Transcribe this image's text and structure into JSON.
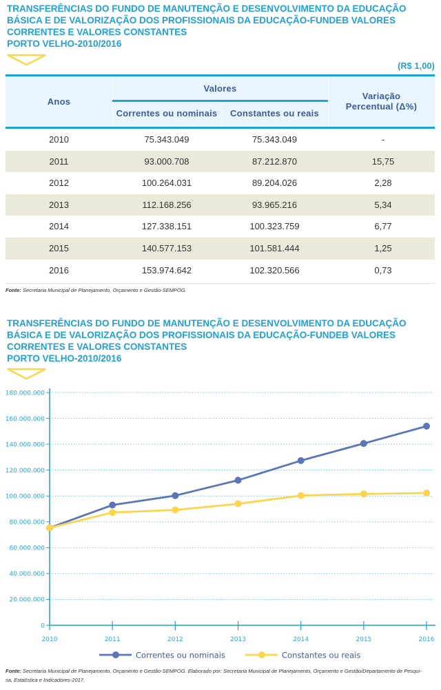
{
  "colors": {
    "title": "#1da1db",
    "header_text": "#3d5a99",
    "header_bg": "#e9f5fc",
    "row_alt_bg": "#ebe9d9",
    "marker_yellow": "#fcd54c"
  },
  "table_section": {
    "title_lines": [
      "TRANSFERÊNCIAS DO FUNDO DE MANUTENÇÃO E DESENVOLVIMENTO DA EDUCAÇÃO",
      "BÁSICA E DE VALORIZAÇÃO DOS PROFISSIONAIS DA EDUCAÇÃO-FUNDEB VALORES",
      "CORRENTES E VALORES CONSTANTES",
      "PORTO VELHO-2010/2016"
    ],
    "unit": "(R$ 1,00)",
    "headers": {
      "anos": "Anos",
      "valores": "Valores",
      "correntes": "Correntes ou nominais",
      "constantes": "Constantes ou reais",
      "variacao_line1": "Variação",
      "variacao_line2": "Percentual (Δ%)"
    },
    "rows": [
      {
        "year": "2010",
        "correntes": "75.343.049",
        "constantes": "75.343.049",
        "variacao": "-"
      },
      {
        "year": "2011",
        "correntes": "93.000.708",
        "constantes": "87.212.870",
        "variacao": "15,75"
      },
      {
        "year": "2012",
        "correntes": "100.264.031",
        "constantes": "89.204.026",
        "variacao": "2,28"
      },
      {
        "year": "2013",
        "correntes": "112.168.256",
        "constantes": "93.965.216",
        "variacao": "5,34"
      },
      {
        "year": "2014",
        "correntes": "127.338.151",
        "constantes": "100.323.759",
        "variacao": "6,77"
      },
      {
        "year": "2015",
        "correntes": "140.577.153",
        "constantes": "101.581.444",
        "variacao": "1,25"
      },
      {
        "year": "2016",
        "correntes": "153.974.642",
        "constantes": "102.320.566",
        "variacao": "0,73"
      }
    ],
    "source": {
      "label": "Fonte:",
      "text": " Secretaria Municipal de Planejamento, Orçamento e Gestão-SEMPOG."
    }
  },
  "chart_section": {
    "title_lines": [
      "TRANSFERÊNCIAS DO FUNDO DE MANUTENÇÃO E DESENVOLVIMENTO DA EDUCAÇÃO",
      "BÁSICA E DE VALORIZAÇÃO DOS PROFISSIONAIS DA EDUCAÇÃO-FUNDEB VALORES",
      "CORRENTES E VALORES CONSTANTES",
      "PORTO VELHO-2010/2016"
    ],
    "source": {
      "label": "Fonte:",
      "line1": " Secretaria Municipal de Planejamento, Orçamento e Gestão-SEMPOG. Elaborado por: Secretaria Municipal de Planejamento, Orçamento e Gestão/Departamento de Pesqui-",
      "line2": "sa, Estatística e Indicadores-2017."
    }
  },
  "chart_data": {
    "type": "line",
    "title": "TRANSFERÊNCIAS DO FUNDO DE MANUTENÇÃO E DESENVOLVIMENTO DA EDUCAÇÃO BÁSICA E DE VALORIZAÇÃO DOS PROFISSIONAIS DA EDUCAÇÃO-FUNDEB VALORES CORRENTES E VALORES CONSTANTES PORTO VELHO-2010/2016",
    "xlabel": "",
    "ylabel": "",
    "categories": [
      "2010",
      "2011",
      "2012",
      "2013",
      "2014",
      "2015",
      "2016"
    ],
    "series": [
      {
        "name": "Correntes ou nominais",
        "color": "#5b75bb",
        "values": [
          75343049,
          93000708,
          100264031,
          112168256,
          127338151,
          140577153,
          153974642
        ]
      },
      {
        "name": "Constantes ou reais",
        "color": "#fcd54c",
        "values": [
          75343049,
          87212870,
          89204026,
          93965216,
          100323759,
          101581444,
          102320566
        ]
      }
    ],
    "ylim": [
      0,
      180000000
    ],
    "yticks": [
      0,
      20000000,
      40000000,
      60000000,
      80000000,
      100000000,
      120000000,
      140000000,
      160000000,
      180000000
    ],
    "yticklabels": [
      "0",
      "20.000.000",
      "40.000.000",
      "60.000.000",
      "80.000.000",
      "100.000.000",
      "120.000.000",
      "140.000.000",
      "160.000.000",
      "180.000.000"
    ],
    "grid": true,
    "legend": "bottom"
  }
}
